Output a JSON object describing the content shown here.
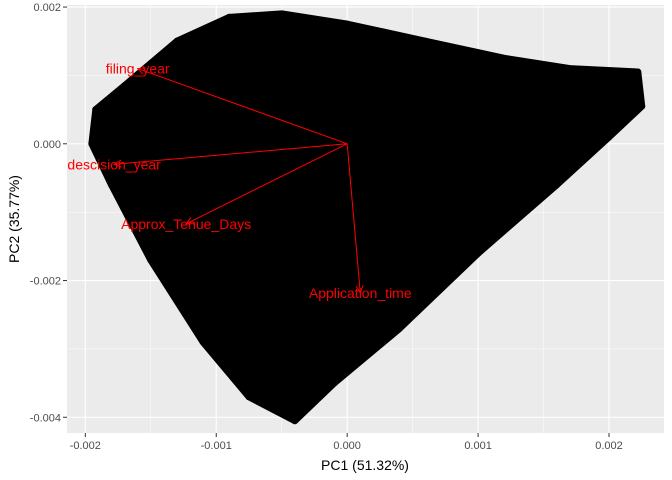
{
  "chart_data": {
    "type": "scatter",
    "title": "",
    "xlabel": "PC1 (51.32%)",
    "ylabel": "PC2 (35.77%)",
    "xlim": [
      -0.00214,
      0.00242
    ],
    "ylim": [
      -0.00423,
      0.00203
    ],
    "x_ticks": [
      {
        "value": -0.002,
        "label": "-0.002"
      },
      {
        "value": -0.001,
        "label": "-0.001"
      },
      {
        "value": 0.0,
        "label": "0.000"
      },
      {
        "value": 0.001,
        "label": "0.001"
      },
      {
        "value": 0.002,
        "label": "0.002"
      }
    ],
    "y_ticks": [
      {
        "value": 0.002,
        "label": "0.002"
      },
      {
        "value": 0.0,
        "label": "0.000"
      },
      {
        "value": -0.002,
        "label": "-0.002"
      },
      {
        "value": -0.004,
        "label": "-0.004"
      }
    ],
    "grid": true,
    "point_cloud": {
      "color": "#000000",
      "outline": [
        [
          -0.00192,
          0.0005
        ],
        [
          -0.0017,
          0.00085
        ],
        [
          -0.0013,
          0.0015
        ],
        [
          -0.0009,
          0.00185
        ],
        [
          -0.0005,
          0.0019
        ],
        [
          0.0,
          0.00175
        ],
        [
          0.0006,
          0.0015
        ],
        [
          0.0012,
          0.00125
        ],
        [
          0.0017,
          0.0011
        ],
        [
          0.00222,
          0.00105
        ],
        [
          0.00225,
          0.00055
        ],
        [
          0.002,
          0.0001
        ],
        [
          0.0016,
          -0.0006
        ],
        [
          0.001,
          -0.0016
        ],
        [
          0.0004,
          -0.0027
        ],
        [
          -0.0001,
          -0.0035
        ],
        [
          -0.0004,
          -0.00405
        ],
        [
          -0.00075,
          -0.0037
        ],
        [
          -0.0011,
          -0.0029
        ],
        [
          -0.0015,
          -0.0017
        ],
        [
          -0.0018,
          -0.0006
        ],
        [
          -0.00195,
          0.0
        ]
      ]
    },
    "loadings": {
      "color": "#ff0000",
      "origin": [
        0.0,
        0.0
      ],
      "vectors": [
        {
          "label": "filing_year",
          "x": -0.0016,
          "y": 0.0011
        },
        {
          "label": "descision_year",
          "x": -0.00178,
          "y": -0.0003
        },
        {
          "label": "Approx_Tenue_Days",
          "x": -0.00123,
          "y": -0.00117
        },
        {
          "label": "Application_time",
          "x": 0.0001,
          "y": -0.00218
        }
      ]
    }
  }
}
